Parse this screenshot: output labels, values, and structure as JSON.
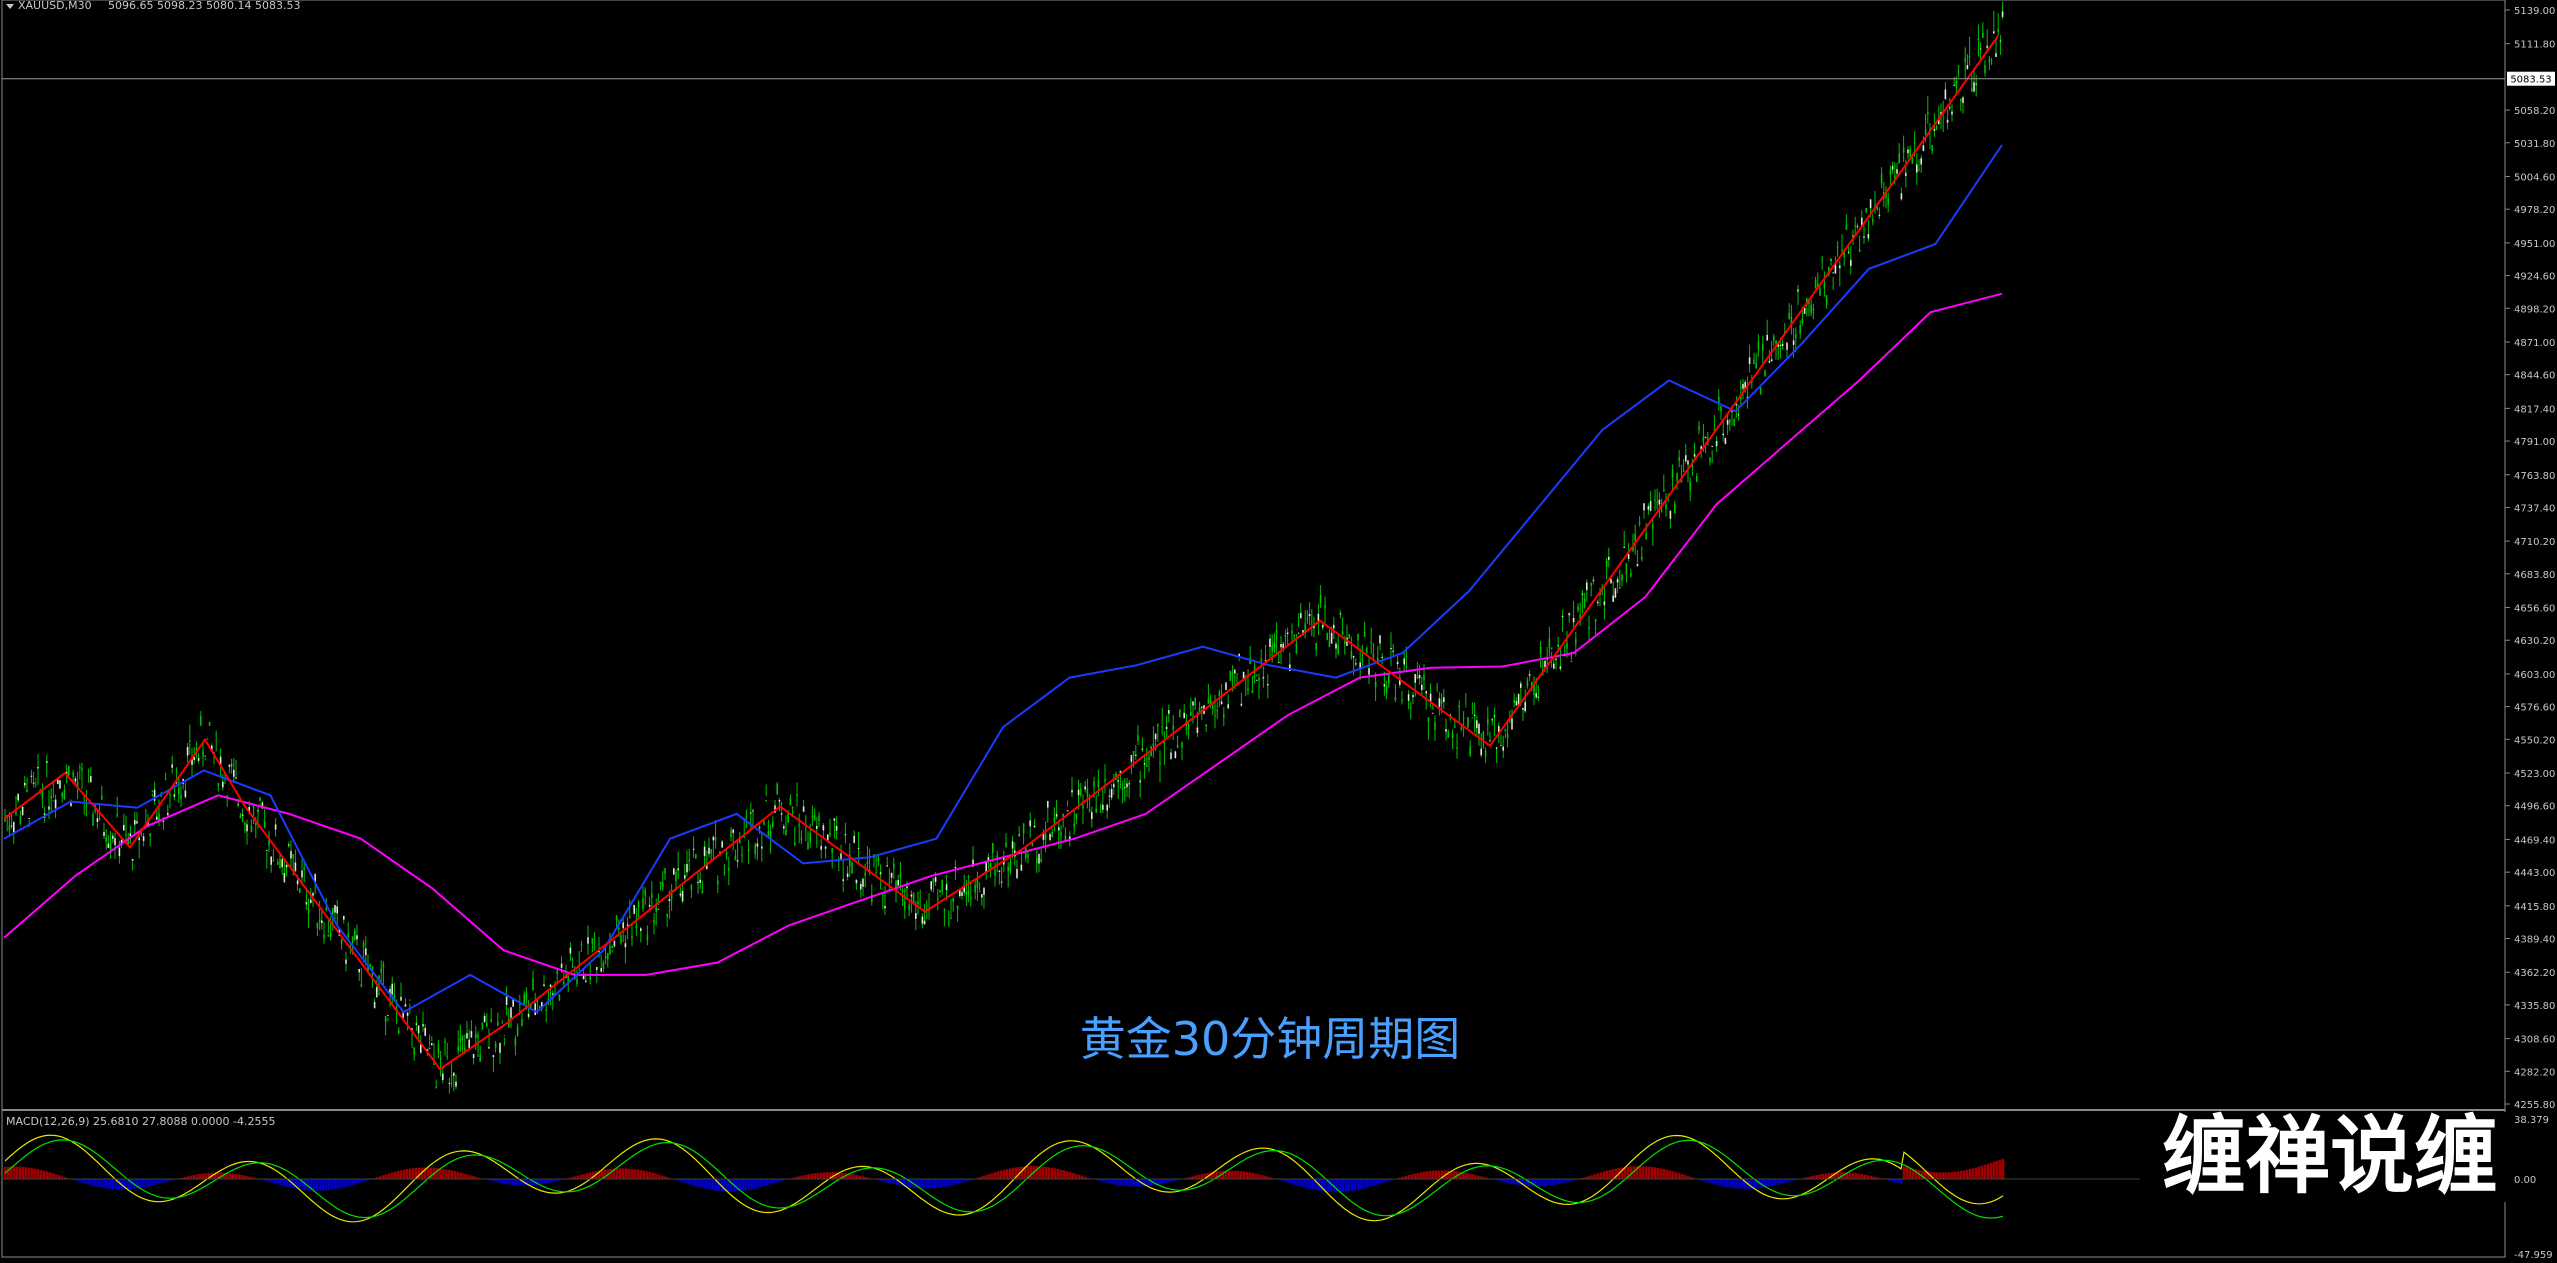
{
  "header": {
    "symbol": "XAUUSD,M30",
    "ohlc": "5096.65 5098.23 5080.14 5083.53"
  },
  "price_axis": {
    "ticks": [
      "5139.00",
      "5111.80",
      "5083.53",
      "5058.20",
      "5031.80",
      "5004.60",
      "4978.20",
      "4951.00",
      "4924.60",
      "4898.20",
      "4871.00",
      "4844.60",
      "4817.40",
      "4791.00",
      "4763.80",
      "4737.40",
      "4710.20",
      "4683.80",
      "4656.60",
      "4630.20",
      "4603.00",
      "4576.60",
      "4550.20",
      "4523.00",
      "4496.60",
      "4469.40",
      "4443.00",
      "4415.80",
      "4389.40",
      "4362.20",
      "4335.80",
      "4308.60",
      "4282.20",
      "4255.80"
    ],
    "current_price": "5083.53"
  },
  "overlay_title": "黄金30分钟周期图",
  "watermark": "缠禅说缠",
  "macd": {
    "label": "MACD(12,26,9) 25.6810 27.8088 0.0000 -4.2555",
    "ticks": [
      "38.379",
      "0.00",
      "-47.959"
    ]
  },
  "colors": {
    "background": "#000000",
    "candle_up": "#00c000",
    "candle_down": "#00c000",
    "zigzag": "#ff0000",
    "ma_fast": "#1a3cff",
    "ma_slow": "#ff00ff",
    "macd_pos": "#a00000",
    "macd_neg": "#0000c8",
    "macd_line": "#e8e800",
    "macd_signal": "#00e000",
    "axis_text": "#c8c8c8",
    "title_text": "#4aa0ff"
  },
  "chart_data": {
    "type": "line",
    "title": "黄金30分钟周期图",
    "ylim": [
      4255.8,
      5139.0
    ],
    "zigzag_pivots": [
      4486,
      4523,
      4463,
      4550,
      4496,
      4284,
      4320,
      4496,
      4411,
      4463,
      4646,
      4545,
      5118
    ],
    "ma_fast_path": [
      4470,
      4500,
      4495,
      4525,
      4505,
      4400,
      4330,
      4360,
      4330,
      4380,
      4470,
      4490,
      4450,
      4455,
      4470,
      4560,
      4600,
      4610,
      4625,
      4610,
      4600,
      4620,
      4670,
      4735,
      4800,
      4840,
      4815,
      4870,
      4930,
      4950,
      5030
    ],
    "ma_slow_path": [
      4390,
      4440,
      4480,
      4505,
      4490,
      4470,
      4430,
      4380,
      4360,
      4360,
      4370,
      4400,
      4420,
      4440,
      4455,
      4470,
      4490,
      4530,
      4570,
      4600,
      4608,
      4609,
      4620,
      4665,
      4740,
      4790,
      4840,
      4895,
      4910
    ],
    "macd_series_range": [
      -47.959,
      38.379
    ]
  }
}
